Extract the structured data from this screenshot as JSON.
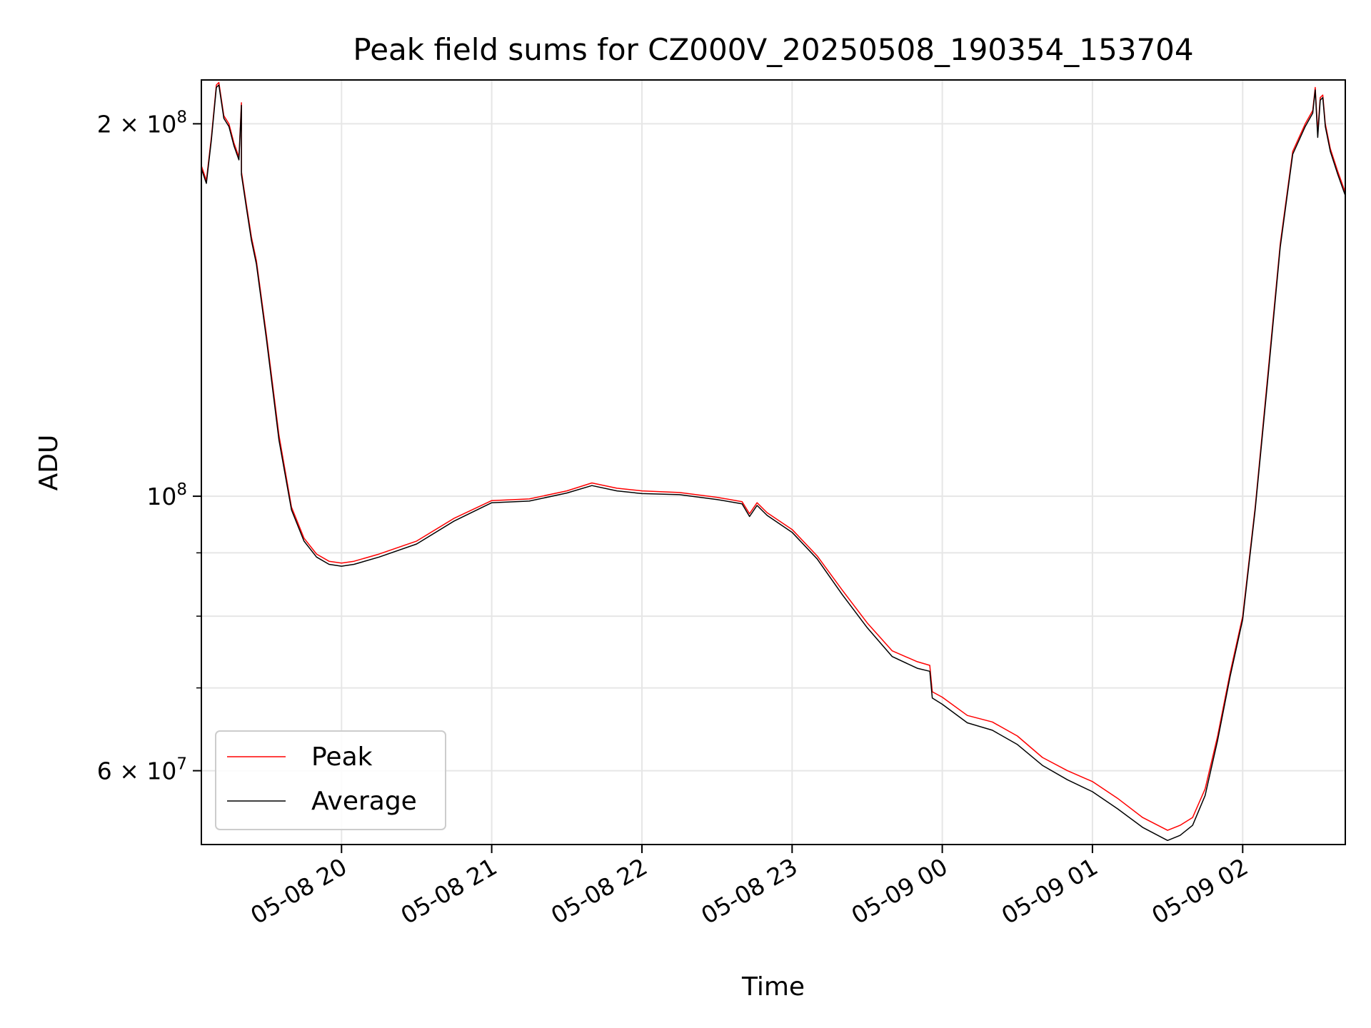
{
  "chart_data": {
    "type": "line",
    "title": "Peak field sums for CZ000V_20250508_190354_153704",
    "xlabel": "Time",
    "ylabel": "ADU",
    "xlim": [
      "2025-05-08 19:04",
      "2025-05-09 02:41"
    ],
    "ylim": [
      52300000,
      217000000
    ],
    "yscale": "log",
    "grid": true,
    "x_ticks": [
      {
        "x": "2025-05-08 20:00",
        "label": "05-08 20"
      },
      {
        "x": "2025-05-08 21:00",
        "label": "05-08 21"
      },
      {
        "x": "2025-05-08 22:00",
        "label": "05-08 22"
      },
      {
        "x": "2025-05-08 23:00",
        "label": "05-08 23"
      },
      {
        "x": "2025-05-09 00:00",
        "label": "05-09 00"
      },
      {
        "x": "2025-05-09 01:00",
        "label": "05-09 01"
      },
      {
        "x": "2025-05-09 02:00",
        "label": "05-09 02"
      }
    ],
    "y_ticks": [
      {
        "y": 200000000,
        "base": "2 × 10",
        "exp": "8"
      },
      {
        "y": 100000000,
        "base": "10",
        "exp": "8"
      },
      {
        "y": 60000000,
        "base": "6 × 10",
        "exp": "7"
      }
    ],
    "y_minor": [
      70000000,
      80000000,
      90000000
    ],
    "legend": {
      "position": "lower left"
    },
    "series": [
      {
        "name": "Peak",
        "color": "#ff0000",
        "x": [
          "2025-05-08 19:04",
          "2025-05-08 19:06",
          "2025-05-08 19:08",
          "2025-05-08 19:10",
          "2025-05-08 19:11",
          "2025-05-08 19:13",
          "2025-05-08 19:15",
          "2025-05-08 19:17",
          "2025-05-08 19:19",
          "2025-05-08 19:20",
          "2025-05-08 19:20",
          "2025-05-08 19:22",
          "2025-05-08 19:24",
          "2025-05-08 19:26",
          "2025-05-08 19:30",
          "2025-05-08 19:35",
          "2025-05-08 19:40",
          "2025-05-08 19:45",
          "2025-05-08 19:50",
          "2025-05-08 19:55",
          "2025-05-08 20:00",
          "2025-05-08 20:05",
          "2025-05-08 20:15",
          "2025-05-08 20:30",
          "2025-05-08 20:45",
          "2025-05-08 21:00",
          "2025-05-08 21:15",
          "2025-05-08 21:30",
          "2025-05-08 21:40",
          "2025-05-08 21:50",
          "2025-05-08 22:00",
          "2025-05-08 22:15",
          "2025-05-08 22:30",
          "2025-05-08 22:40",
          "2025-05-08 22:43",
          "2025-05-08 22:46",
          "2025-05-08 22:50",
          "2025-05-08 23:00",
          "2025-05-08 23:10",
          "2025-05-08 23:20",
          "2025-05-08 23:30",
          "2025-05-08 23:40",
          "2025-05-08 23:50",
          "2025-05-08 23:55",
          "2025-05-08 23:56",
          "2025-05-09 00:00",
          "2025-05-09 00:10",
          "2025-05-09 00:20",
          "2025-05-09 00:30",
          "2025-05-09 00:40",
          "2025-05-09 00:50",
          "2025-05-09 01:00",
          "2025-05-09 01:10",
          "2025-05-09 01:20",
          "2025-05-09 01:30",
          "2025-05-09 01:35",
          "2025-05-09 01:40",
          "2025-05-09 01:45",
          "2025-05-09 01:50",
          "2025-05-09 01:55",
          "2025-05-09 02:00",
          "2025-05-09 02:05",
          "2025-05-09 02:10",
          "2025-05-09 02:15",
          "2025-05-09 02:20",
          "2025-05-09 02:25",
          "2025-05-09 02:28",
          "2025-05-09 02:29",
          "2025-05-09 02:30",
          "2025-05-09 02:31",
          "2025-05-09 02:32",
          "2025-05-09 02:33",
          "2025-05-09 02:35",
          "2025-05-09 02:38",
          "2025-05-09 02:41"
        ],
        "y": [
          185000000,
          180000000,
          195000000,
          215000000,
          216000000,
          203000000,
          200000000,
          193000000,
          188000000,
          208000000,
          183000000,
          172000000,
          162000000,
          155000000,
          135000000,
          112000000,
          98000000,
          92500000,
          89800000,
          88600000,
          88300000,
          88600000,
          89800000,
          92000000,
          96000000,
          99200000,
          99500000,
          101000000,
          102500000,
          101500000,
          101000000,
          100700000,
          99800000,
          99000000,
          96800000,
          98800000,
          97000000,
          94000000,
          89500000,
          84000000,
          79000000,
          75000000,
          73500000,
          73000000,
          69500000,
          68800000,
          66500000,
          65700000,
          64000000,
          61500000,
          60000000,
          58800000,
          57000000,
          55000000,
          53700000,
          54200000,
          55000000,
          58000000,
          64000000,
          72000000,
          80000000,
          98000000,
          125000000,
          160000000,
          190000000,
          200000000,
          205000000,
          214000000,
          197000000,
          210000000,
          211000000,
          200000000,
          191000000,
          183000000,
          176000000
        ]
      },
      {
        "name": "Average",
        "color": "#000000",
        "x": [
          "2025-05-08 19:04",
          "2025-05-08 19:06",
          "2025-05-08 19:08",
          "2025-05-08 19:10",
          "2025-05-08 19:11",
          "2025-05-08 19:13",
          "2025-05-08 19:15",
          "2025-05-08 19:17",
          "2025-05-08 19:19",
          "2025-05-08 19:20",
          "2025-05-08 19:20",
          "2025-05-08 19:22",
          "2025-05-08 19:24",
          "2025-05-08 19:26",
          "2025-05-08 19:30",
          "2025-05-08 19:35",
          "2025-05-08 19:40",
          "2025-05-08 19:45",
          "2025-05-08 19:50",
          "2025-05-08 19:55",
          "2025-05-08 20:00",
          "2025-05-08 20:05",
          "2025-05-08 20:15",
          "2025-05-08 20:30",
          "2025-05-08 20:45",
          "2025-05-08 21:00",
          "2025-05-08 21:15",
          "2025-05-08 21:30",
          "2025-05-08 21:40",
          "2025-05-08 21:50",
          "2025-05-08 22:00",
          "2025-05-08 22:15",
          "2025-05-08 22:30",
          "2025-05-08 22:40",
          "2025-05-08 22:43",
          "2025-05-08 22:46",
          "2025-05-08 22:50",
          "2025-05-08 23:00",
          "2025-05-08 23:10",
          "2025-05-08 23:20",
          "2025-05-08 23:30",
          "2025-05-08 23:40",
          "2025-05-08 23:50",
          "2025-05-08 23:55",
          "2025-05-08 23:56",
          "2025-05-09 00:00",
          "2025-05-09 00:10",
          "2025-05-09 00:20",
          "2025-05-09 00:30",
          "2025-05-09 00:40",
          "2025-05-09 00:50",
          "2025-05-09 01:00",
          "2025-05-09 01:10",
          "2025-05-09 01:20",
          "2025-05-09 01:30",
          "2025-05-09 01:35",
          "2025-05-09 01:40",
          "2025-05-09 01:45",
          "2025-05-09 01:50",
          "2025-05-09 01:55",
          "2025-05-09 02:00",
          "2025-05-09 02:05",
          "2025-05-09 02:10",
          "2025-05-09 02:15",
          "2025-05-09 02:20",
          "2025-05-09 02:25",
          "2025-05-09 02:28",
          "2025-05-09 02:29",
          "2025-05-09 02:30",
          "2025-05-09 02:31",
          "2025-05-09 02:32",
          "2025-05-09 02:33",
          "2025-05-09 02:35",
          "2025-05-09 02:38",
          "2025-05-09 02:41"
        ],
        "y": [
          184000000,
          179000000,
          194000000,
          214000000,
          215000000,
          202000000,
          199000000,
          192000000,
          187000000,
          207000000,
          182000000,
          171000000,
          161000000,
          154000000,
          134000000,
          111000000,
          97500000,
          92000000,
          89300000,
          88100000,
          87800000,
          88100000,
          89300000,
          91500000,
          95500000,
          98800000,
          99100000,
          100600000,
          102000000,
          101000000,
          100500000,
          100300000,
          99400000,
          98600000,
          96300000,
          98300000,
          96500000,
          93500000,
          89000000,
          83300000,
          78300000,
          74200000,
          72600000,
          72200000,
          68700000,
          67900000,
          65600000,
          64700000,
          63000000,
          60600000,
          59000000,
          57700000,
          55900000,
          54000000,
          52700000,
          53200000,
          54200000,
          57300000,
          63500000,
          71500000,
          79500000,
          97500000,
          124000000,
          159000000,
          189000000,
          199000000,
          204000000,
          213000000,
          195000000,
          209000000,
          210000000,
          199000000,
          190000000,
          182000000,
          175000000
        ]
      }
    ]
  }
}
